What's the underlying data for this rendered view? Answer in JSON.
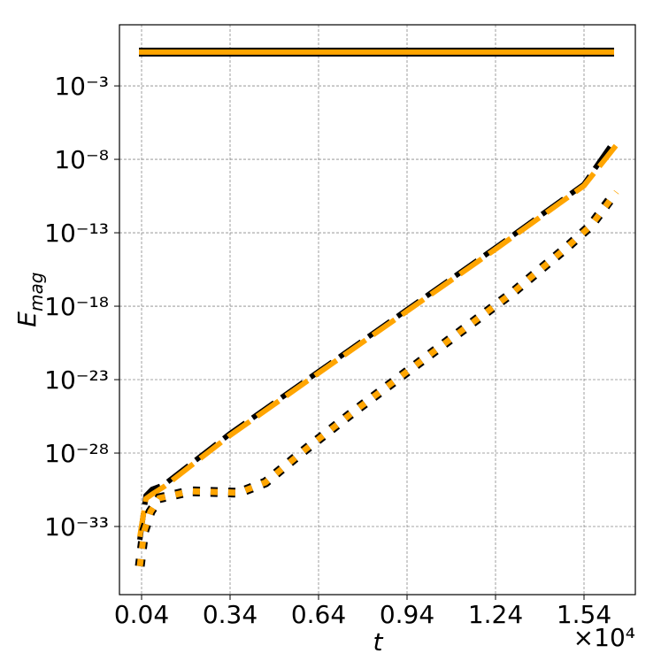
{
  "chart_data": {
    "type": "line",
    "xlabel": "t",
    "x_offset_label": "×10⁴",
    "ylabel": "E",
    "ylabel_subscript": "mag",
    "yscale": "log",
    "grid": true,
    "xlim": [
      -0.035,
      1.714
    ],
    "ylim": [
      14.5,
      2.3e-38
    ],
    "xticks": [
      0.04,
      0.34,
      0.64,
      0.94,
      1.24,
      1.54
    ],
    "yticks": [
      {
        "value": 0.001,
        "label": "10⁻³"
      },
      {
        "value": 1e-08,
        "label": "10⁻⁸"
      },
      {
        "value": 1e-13,
        "label": "10⁻¹³"
      },
      {
        "value": 1e-18,
        "label": "10⁻¹⁸"
      },
      {
        "value": 1e-23,
        "label": "10⁻²³"
      },
      {
        "value": 1e-28,
        "label": "10⁻²⁸"
      },
      {
        "value": 1e-33,
        "label": "10⁻³³"
      }
    ],
    "series": [
      {
        "color": "#ffa500",
        "edgecolor": "#000000",
        "linestyle": "solid",
        "x": [
          0.031,
          1.642
        ],
        "values": [
          0.2,
          0.2
        ]
      },
      {
        "color": "#000000",
        "linestyle": "dashed",
        "x": [
          0.034,
          0.055,
          0.076,
          0.115,
          0.34,
          0.64,
          0.94,
          1.24,
          1.54,
          1.63
        ],
        "values": [
          1.26e-34,
          1.26e-31,
          3.4e-31,
          6.8e-31,
          2.1e-27,
          3.5e-23,
          5.8e-19,
          9.5e-15,
          2e-10,
          7.9e-08
        ]
      },
      {
        "color": "#ffa500",
        "linestyle": "dashed",
        "x": [
          0.034,
          0.055,
          0.076,
          0.115,
          0.34,
          0.64,
          0.94,
          1.24,
          1.54,
          1.65
        ],
        "values": [
          2e-34,
          8e-32,
          1.6e-31,
          5e-31,
          1.6e-27,
          2.8e-23,
          4.6e-19,
          7.6e-15,
          1.6e-10,
          9.5e-08
        ]
      },
      {
        "color": "#000000",
        "linestyle": "dotted",
        "x": [
          0.034,
          0.049,
          0.07,
          0.1,
          0.205,
          0.37,
          0.46,
          0.58,
          0.76,
          0.94,
          1.12,
          1.3,
          1.48,
          1.564,
          1.63
        ],
        "values": [
          2e-36,
          5e-34,
          1e-32,
          8.5e-32,
          2.5e-31,
          2e-31,
          1e-30,
          1e-28,
          6.8e-26,
          3.5e-23,
          1.8e-20,
          9.1e-18,
          9.5e-15,
          3.2e-13,
          2e-11
        ]
      },
      {
        "color": "#ffa500",
        "linestyle": "dotted",
        "x": [
          0.034,
          0.049,
          0.07,
          0.1,
          0.205,
          0.37,
          0.46,
          0.58,
          0.76,
          0.94,
          1.12,
          1.3,
          1.48,
          1.564,
          1.65
        ],
        "values": [
          2e-36,
          5e-34,
          1e-32,
          8.5e-32,
          2.5e-31,
          2e-31,
          1e-30,
          1e-28,
          6.8e-26,
          3.5e-23,
          1.8e-20,
          9.1e-18,
          9.5e-15,
          3.2e-13,
          6e-11
        ]
      }
    ]
  }
}
